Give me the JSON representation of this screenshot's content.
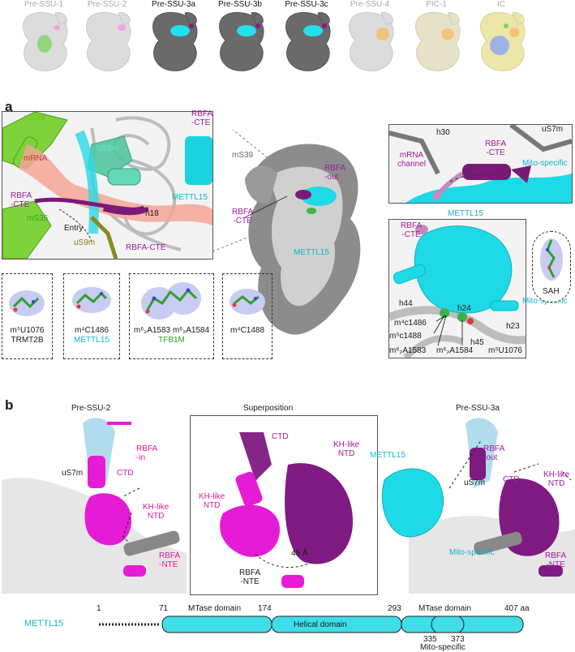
{
  "panel_a": "a",
  "panel_b": "b",
  "top_row": [
    {
      "label": "Pre-SSU-1",
      "style": "dim"
    },
    {
      "label": "Pre-SSU-2",
      "style": "dim"
    },
    {
      "label": "Pre-SSU-3a",
      "style": "dark"
    },
    {
      "label": "Pre-SSU-3b",
      "style": "dark"
    },
    {
      "label": "Pre-SSU-3c",
      "style": "dark"
    },
    {
      "label": "Pre-SSU-4",
      "style": "dim"
    },
    {
      "label": "PIC-1",
      "style": "dim"
    },
    {
      "label": "IC",
      "style": "dim"
    }
  ],
  "a_left_labels": {
    "mS39": "mS39",
    "mRNA": "mRNA",
    "uS6m": "uS6m",
    "METTL15": "METTL15",
    "RBFA_CTE_1": "RBFA",
    "RBFA_CTE_2": "-CTE",
    "mS35": "mS35",
    "entry": "Entry",
    "h18": "h18",
    "uS9m": "uS9m",
    "RBFA_CTE_bottom": "RBFA-CTE",
    "RBFA_CTE_right_1": "RBFA",
    "RBFA_CTE_right_2": "-CTE"
  },
  "a_center_labels": {
    "mS39": "mS39",
    "RBFA_out_1": "RBFA",
    "RBFA_out_2": "-out",
    "RBFA_CTE_1": "RBFA",
    "RBFA_CTE_2": "-CTE",
    "METTL15": "METTL15"
  },
  "a_top_right_labels": {
    "uS7m": "uS7m",
    "h30": "h30",
    "RBFA_CTE_1": "RBFA",
    "RBFA_CTE_2": "-CTE",
    "mRNA_channel_1": "mRNA",
    "mRNA_channel_2": "channel",
    "mito_specific": "Mito-specific"
  },
  "a_bottom_right_labels": {
    "METTL15": "METTL15",
    "RBFA_CTE_1": "RBFA",
    "RBFA_CTE_2": "-CTE",
    "SAH": "SAH",
    "h44": "h44",
    "h24": "h24",
    "mito_specific": "Mito-specific",
    "h23": "h23",
    "m4c1486": "m⁴c1486",
    "m5c1488": "m⁵c1488",
    "h45": "h45",
    "m5U1076": "m⁵U1076",
    "m62A1583": "m⁶₂A1583",
    "m62A1584": "m⁶₂A1584"
  },
  "a_density_captions": {
    "box1_line1": "m⁵U1076",
    "box1_line2": "TRMT2B",
    "box2_line1": "m⁴C1486",
    "box2_line2": "METTL15",
    "box3_line1": "m⁶₂A1583  m⁶₂A1584",
    "box3_line2": "TFB1M",
    "box4_line1": "m⁴C1488"
  },
  "b_titles": {
    "left": "Pre-SSU-2",
    "middle": "Superposition",
    "right": "Pre-SSU-3a"
  },
  "b_left_labels": {
    "RBFA_in_1": "RBFA",
    "RBFA_in_2": "-in",
    "uS7m": "uS7m",
    "CTD": "CTD",
    "KH_1": "KH-like",
    "KH_2": "NTD",
    "RBFA_NTE_1": "RBFA",
    "RBFA_NTE_2": "-NTE"
  },
  "b_mid_labels": {
    "CTD": "CTD",
    "KH_right_1": "KH-like",
    "KH_right_2": "NTD",
    "KH_left_1": "KH-like",
    "KH_left_2": "NTD",
    "angle": "45 Å",
    "RBFA_NTE_1": "RBFA",
    "RBFA_NTE_2": "-NTE"
  },
  "b_right_labels": {
    "METTL15": "METTL15",
    "uS7m": "uS7m",
    "RBFA_out_1": "RBFA",
    "RBFA_out_2": "-out",
    "CTD": "CTD",
    "KH_1": "KH-like",
    "KH_2": "NTD",
    "mito_specific": "Mito-specific",
    "RBFA_NTE_1": "RBFA",
    "RBFA_NTE_2": "-NTE"
  },
  "domain_map": {
    "protein": "METTL15",
    "start": "1",
    "domains": [
      {
        "label": "MTase domain",
        "from": 71,
        "to": 174
      },
      {
        "label": "Helical domain",
        "from": 174,
        "to": 293
      },
      {
        "label": "MTase domain",
        "from": 293,
        "to": 407
      }
    ],
    "ticks": [
      "71",
      "174",
      "293",
      "407 aa"
    ],
    "mito_ticks": [
      "335",
      "373"
    ],
    "mito_label": "Mito-specific",
    "colors": {
      "domain_fill": "#3fdde8",
      "outline": "#222222",
      "text": "#11b6c9"
    }
  },
  "colors": {
    "magenta": "#a11a9a",
    "pink": "#e0199a",
    "cyan": "#18d4e0",
    "light_blue": "#a9d8ec",
    "green": "#7acb2d",
    "salmon": "#f4a090",
    "grey_map": "#b8b8b8"
  }
}
